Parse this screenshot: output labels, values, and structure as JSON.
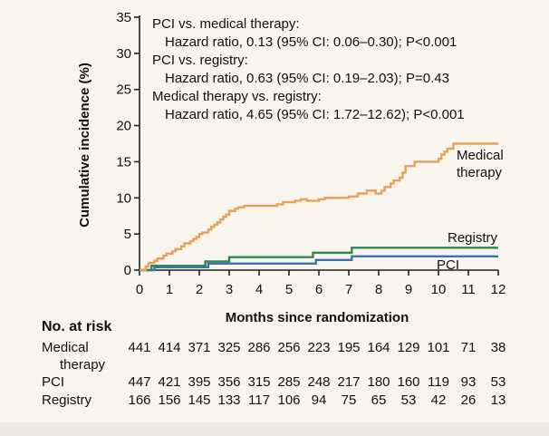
{
  "chart_data": {
    "type": "line",
    "xlabel": "Months since randomization",
    "ylabel": "Cumulative incidence (%)",
    "xlim": [
      0,
      12
    ],
    "ylim": [
      0,
      35
    ],
    "x_ticks": [
      "0",
      "1",
      "2",
      "3",
      "4",
      "5",
      "6",
      "7",
      "8",
      "9",
      "10",
      "11",
      "12"
    ],
    "y_ticks": [
      "0",
      "5",
      "10",
      "15",
      "20",
      "25",
      "30",
      "35"
    ],
    "annotations": {
      "line1": "PCI vs. medical therapy:",
      "line2": "Hazard ratio, 0.13 (95% CI: 0.06–0.30); P<0.001",
      "line3": "PCI vs. registry:",
      "line4": "Hazard ratio, 0.63 (95% CI: 0.19–2.03); P=0.43",
      "line5": "Medical therapy vs. registry:",
      "line6": "Hazard ratio, 4.65 (95% CI: 1.72–12.62); P<0.001"
    },
    "series": [
      {
        "name": "Medical therapy",
        "label_line1": "Medical",
        "label_line2": "therapy",
        "color": "#e8a05a",
        "x": [
          0,
          0.2,
          0.3,
          0.5,
          0.6,
          0.8,
          0.9,
          1.1,
          1.2,
          1.4,
          1.5,
          1.7,
          1.8,
          1.9,
          2.0,
          2.1,
          2.3,
          2.4,
          2.5,
          2.6,
          2.7,
          2.8,
          2.9,
          3.0,
          3.2,
          3.3,
          3.5,
          4.5,
          4.6,
          4.8,
          5.2,
          5.4,
          5.6,
          6.0,
          6.2,
          7.0,
          7.3,
          7.6,
          7.9,
          8.1,
          8.2,
          8.4,
          8.5,
          8.7,
          8.8,
          8.9,
          9.2,
          9.5,
          10.0,
          10.1,
          10.2,
          10.3,
          10.5,
          12.0
        ],
        "y": [
          0,
          0.5,
          1.0,
          1.3,
          1.6,
          2.0,
          2.3,
          2.6,
          2.9,
          3.3,
          3.7,
          4.0,
          4.3,
          4.6,
          5.0,
          5.2,
          5.6,
          6.0,
          6.3,
          6.6,
          7.0,
          7.4,
          7.7,
          8.2,
          8.5,
          8.7,
          8.9,
          8.9,
          9.1,
          9.4,
          9.6,
          9.8,
          9.6,
          9.8,
          10.0,
          10.2,
          10.6,
          11.0,
          10.6,
          11.0,
          11.5,
          12.0,
          12.4,
          12.8,
          13.5,
          14.4,
          15.0,
          15.0,
          15.4,
          16.0,
          16.4,
          16.8,
          17.5,
          17.5
        ]
      },
      {
        "name": "Registry",
        "label_line1": "Registry",
        "color": "#2e8a4f",
        "x": [
          0,
          0.3,
          0.4,
          2.1,
          2.2,
          2.9,
          3.0,
          5.6,
          5.8,
          5.9,
          7.0,
          7.1,
          12.0
        ],
        "y": [
          0,
          0,
          0.6,
          0.6,
          1.2,
          1.2,
          1.8,
          1.8,
          2.4,
          2.4,
          2.4,
          3.1,
          3.1
        ]
      },
      {
        "name": "PCI",
        "label_line1": "PCI",
        "color": "#3f6fb4",
        "x": [
          0,
          0.4,
          0.5,
          2.2,
          2.3,
          5.8,
          5.9,
          7.0,
          7.1,
          12.0
        ],
        "y": [
          0,
          0,
          0.4,
          0.4,
          0.9,
          0.9,
          1.4,
          1.4,
          1.9,
          1.9
        ]
      }
    ],
    "risk_table": {
      "title": "No. at risk",
      "rows": [
        {
          "label": "Medical",
          "label2": "therapy",
          "values": [
            "441",
            "414",
            "371",
            "325",
            "286",
            "256",
            "223",
            "195",
            "164",
            "129",
            "101",
            "71",
            "38"
          ]
        },
        {
          "label": "PCI",
          "values": [
            "447",
            "421",
            "395",
            "356",
            "315",
            "285",
            "248",
            "217",
            "180",
            "160",
            "119",
            "93",
            "53"
          ]
        },
        {
          "label": "Registry",
          "values": [
            "166",
            "156",
            "145",
            "133",
            "117",
            "106",
            "94",
            "75",
            "65",
            "53",
            "42",
            "26",
            "13"
          ]
        }
      ]
    }
  }
}
